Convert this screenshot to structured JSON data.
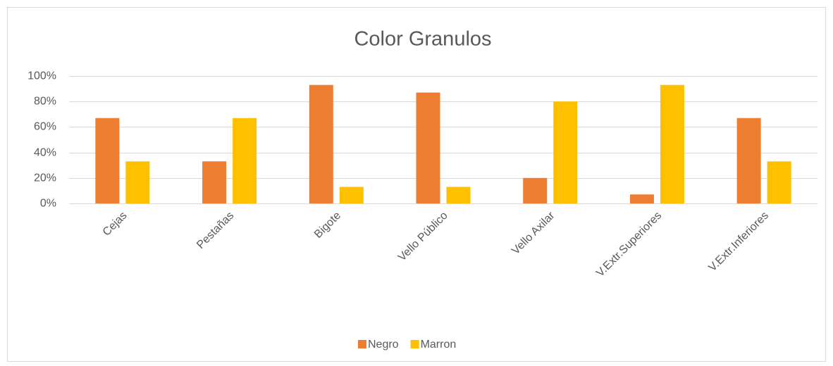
{
  "chart_data": {
    "type": "bar",
    "title": "Color Granulos",
    "categories": [
      "Cejas",
      "Pestañas",
      "Bigote",
      "Vello Público",
      "Vello Axilar",
      "V.Extr.Superiores",
      "V.Extr.Inferiores"
    ],
    "series": [
      {
        "name": "Negro",
        "color": "#ed7d31",
        "values": [
          67,
          33,
          93,
          87,
          20,
          7,
          67
        ]
      },
      {
        "name": "Marron",
        "color": "#ffc000",
        "values": [
          33,
          67,
          13,
          13,
          80,
          93,
          33
        ]
      }
    ],
    "ylim": [
      0,
      100
    ],
    "yticks": [
      {
        "value": 0,
        "label": "0%"
      },
      {
        "value": 20,
        "label": "20%"
      },
      {
        "value": 40,
        "label": "40%"
      },
      {
        "value": 60,
        "label": "60%"
      },
      {
        "value": 80,
        "label": "80%"
      },
      {
        "value": 100,
        "label": "100%"
      }
    ],
    "grid": true,
    "legend": "bottom"
  }
}
